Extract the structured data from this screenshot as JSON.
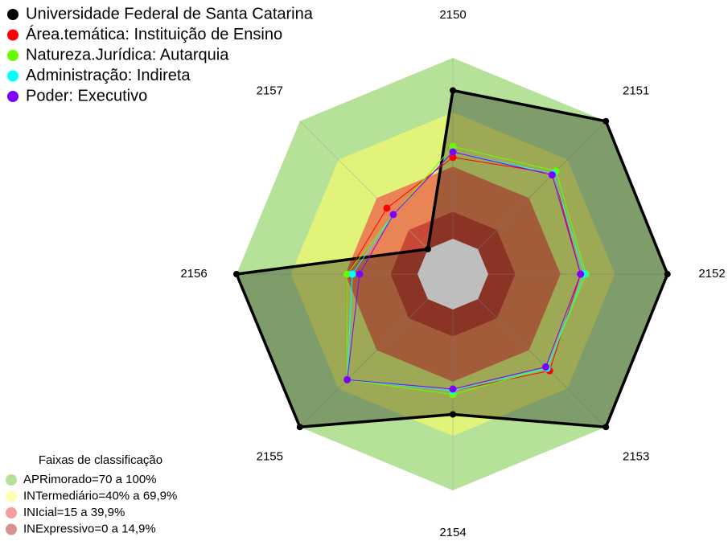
{
  "chart_data": {
    "type": "radar",
    "categories": [
      "2150",
      "2151",
      "2152",
      "2153",
      "2154",
      "2155",
      "2156",
      "2157"
    ],
    "rlim": [
      0,
      100
    ],
    "series": [
      {
        "name": "Universidade Federal de Santa Catarina",
        "color": "#000000",
        "values": [
          82,
          100,
          99,
          100,
          58,
          100,
          100,
          0
        ]
      },
      {
        "name": "Área.temática: Instituição de Ensino",
        "color": "#ff0000",
        "values": [
          45,
          59,
          51,
          56,
          45,
          63,
          39,
          32
        ]
      },
      {
        "name": "Natureza.Jurídica: Autarquia",
        "color": "#66ff00",
        "values": [
          51,
          61,
          54,
          54,
          47,
          63,
          39,
          27
        ]
      },
      {
        "name": "Administração: Indireta",
        "color": "#00ffff",
        "values": [
          48,
          59,
          53,
          54,
          45,
          63,
          36,
          27
        ]
      },
      {
        "name": "Poder: Executivo",
        "color": "#8000ff",
        "values": [
          48,
          58,
          51,
          53,
          44,
          63,
          32,
          27
        ]
      }
    ],
    "bands_title": "Faixas de classificação",
    "bands": [
      {
        "name": "APRimorado=70 a 100%",
        "color": "#7ac943",
        "from": 70,
        "to": 100
      },
      {
        "name": "INTermediário=40% a 69,9%",
        "color": "#ffff66",
        "from": 40,
        "to": 69.9
      },
      {
        "name": "INIcial=15 a 39,9%",
        "color": "#ee3b3b",
        "from": 15,
        "to": 39.9
      },
      {
        "name": "INExpressivo=0 a 14,9%",
        "color": "#b22222",
        "from": 0,
        "to": 14.9
      }
    ]
  }
}
